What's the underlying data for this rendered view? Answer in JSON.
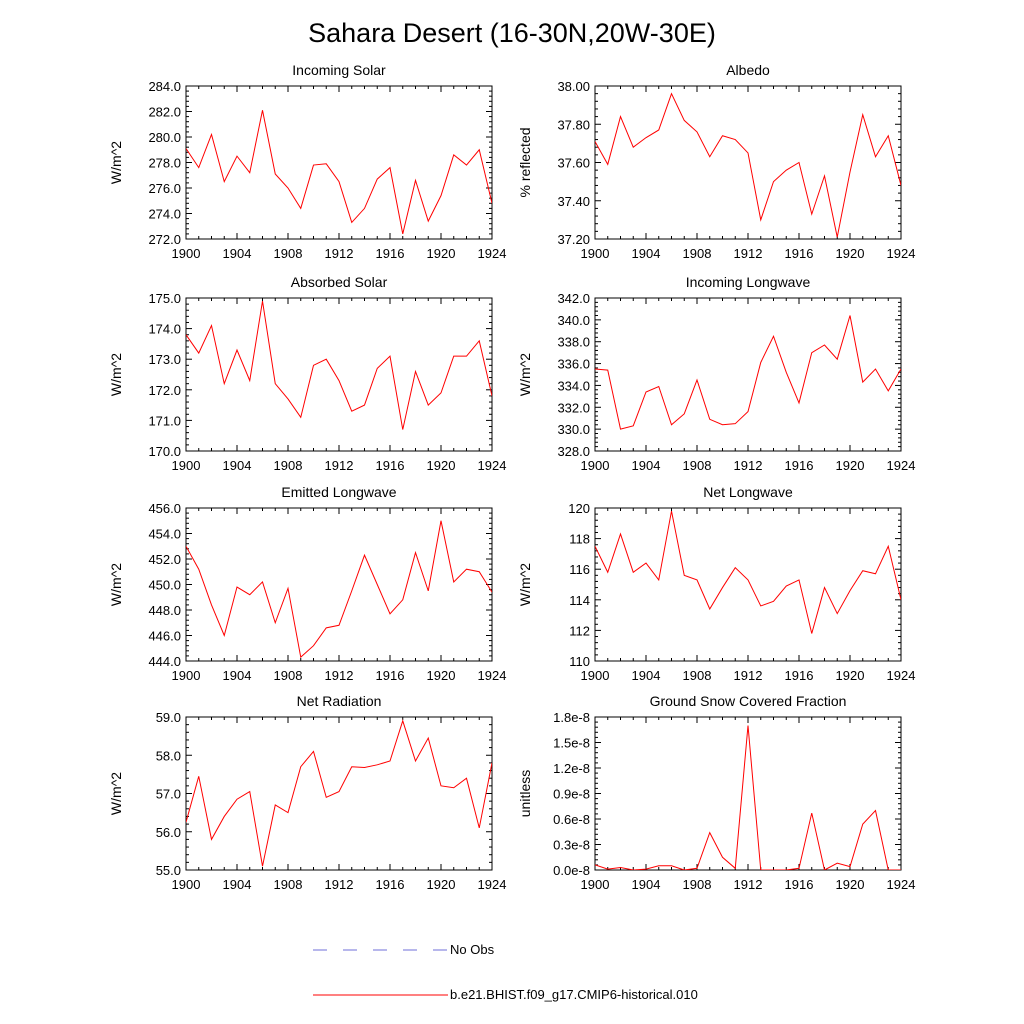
{
  "figure": {
    "title": "Sahara Desert (16-30N,20W-30E)"
  },
  "legend": {
    "obs_label": "No Obs",
    "obs_color": "#6f6fd8",
    "model_label": "b.e21.BHIST.f09_g17.CMIP6-historical.010",
    "model_color": "#ff0000"
  },
  "chart_data": [
    {
      "type": "line",
      "title": "Incoming Solar",
      "ylabel": "W/m^2",
      "xlabel": "",
      "xlim": [
        1900,
        1924
      ],
      "ylim": [
        272,
        284
      ],
      "yticks": [
        "272.0",
        "274.0",
        "276.0",
        "278.0",
        "280.0",
        "282.0",
        "284.0"
      ],
      "xticks": [
        "1900",
        "1904",
        "1908",
        "1912",
        "1916",
        "1920",
        "1924"
      ],
      "x": [
        1900,
        1901,
        1902,
        1903,
        1904,
        1905,
        1906,
        1907,
        1908,
        1909,
        1910,
        1911,
        1912,
        1913,
        1914,
        1915,
        1916,
        1917,
        1918,
        1919,
        1920,
        1921,
        1922,
        1923,
        1924
      ],
      "series": [
        {
          "values": [
            279.1,
            277.6,
            280.2,
            276.5,
            278.5,
            277.2,
            282.1,
            277.1,
            276.0,
            274.4,
            277.8,
            277.9,
            276.5,
            273.3,
            274.4,
            276.7,
            277.6,
            272.4,
            276.6,
            273.4,
            275.4,
            278.6,
            277.8,
            279.0,
            274.8
          ]
        }
      ]
    },
    {
      "type": "line",
      "title": "Albedo",
      "ylabel": "% reflected",
      "xlabel": "",
      "xlim": [
        1900,
        1924
      ],
      "ylim": [
        37.2,
        38.0
      ],
      "yticks": [
        "37.20",
        "37.40",
        "37.60",
        "37.80",
        "38.00"
      ],
      "xticks": [
        "1900",
        "1904",
        "1908",
        "1912",
        "1916",
        "1920",
        "1924"
      ],
      "x": [
        1900,
        1901,
        1902,
        1903,
        1904,
        1905,
        1906,
        1907,
        1908,
        1909,
        1910,
        1911,
        1912,
        1913,
        1914,
        1915,
        1916,
        1917,
        1918,
        1919,
        1920,
        1921,
        1922,
        1923,
        1924
      ],
      "series": [
        {
          "values": [
            37.71,
            37.59,
            37.84,
            37.68,
            37.73,
            37.77,
            37.96,
            37.82,
            37.76,
            37.63,
            37.74,
            37.72,
            37.65,
            37.3,
            37.5,
            37.56,
            37.6,
            37.33,
            37.53,
            37.21,
            37.55,
            37.85,
            37.63,
            37.74,
            37.48
          ]
        }
      ]
    },
    {
      "type": "line",
      "title": "Absorbed Solar",
      "ylabel": "W/m^2",
      "xlabel": "",
      "xlim": [
        1900,
        1924
      ],
      "ylim": [
        170,
        175
      ],
      "yticks": [
        "170.0",
        "171.0",
        "172.0",
        "173.0",
        "174.0",
        "175.0"
      ],
      "xticks": [
        "1900",
        "1904",
        "1908",
        "1912",
        "1916",
        "1920",
        "1924"
      ],
      "x": [
        1900,
        1901,
        1902,
        1903,
        1904,
        1905,
        1906,
        1907,
        1908,
        1909,
        1910,
        1911,
        1912,
        1913,
        1914,
        1915,
        1916,
        1917,
        1918,
        1919,
        1920,
        1921,
        1922,
        1923,
        1924
      ],
      "series": [
        {
          "values": [
            173.8,
            173.2,
            174.1,
            172.2,
            173.3,
            172.3,
            174.9,
            172.2,
            171.7,
            171.1,
            172.8,
            173.0,
            172.3,
            171.3,
            171.5,
            172.7,
            173.1,
            170.7,
            172.6,
            171.5,
            171.9,
            173.1,
            173.1,
            173.6,
            171.8
          ]
        }
      ]
    },
    {
      "type": "line",
      "title": "Incoming Longwave",
      "ylabel": "W/m^2",
      "xlabel": "",
      "xlim": [
        1900,
        1924
      ],
      "ylim": [
        328,
        342
      ],
      "yticks": [
        "328.0",
        "330.0",
        "332.0",
        "334.0",
        "336.0",
        "338.0",
        "340.0",
        "342.0"
      ],
      "xticks": [
        "1900",
        "1904",
        "1908",
        "1912",
        "1916",
        "1920",
        "1924"
      ],
      "x": [
        1900,
        1901,
        1902,
        1903,
        1904,
        1905,
        1906,
        1907,
        1908,
        1909,
        1910,
        1911,
        1912,
        1913,
        1914,
        1915,
        1916,
        1917,
        1918,
        1919,
        1920,
        1921,
        1922,
        1923,
        1924
      ],
      "series": [
        {
          "values": [
            335.5,
            335.4,
            330.0,
            330.3,
            333.4,
            333.9,
            330.4,
            331.4,
            334.5,
            330.9,
            330.4,
            330.5,
            331.6,
            336.1,
            338.5,
            335.2,
            332.4,
            337.0,
            337.7,
            336.4,
            340.4,
            334.3,
            335.5,
            333.5,
            335.5
          ]
        }
      ]
    },
    {
      "type": "line",
      "title": "Emitted Longwave",
      "ylabel": "W/m^2",
      "xlabel": "",
      "xlim": [
        1900,
        1924
      ],
      "ylim": [
        444,
        456
      ],
      "yticks": [
        "444.0",
        "446.0",
        "448.0",
        "450.0",
        "452.0",
        "454.0",
        "456.0"
      ],
      "xticks": [
        "1900",
        "1904",
        "1908",
        "1912",
        "1916",
        "1920",
        "1924"
      ],
      "x": [
        1900,
        1901,
        1902,
        1903,
        1904,
        1905,
        1906,
        1907,
        1908,
        1909,
        1910,
        1911,
        1912,
        1913,
        1914,
        1915,
        1916,
        1917,
        1918,
        1919,
        1920,
        1921,
        1922,
        1923,
        1924
      ],
      "series": [
        {
          "values": [
            453.0,
            451.2,
            448.4,
            446.0,
            449.8,
            449.2,
            450.2,
            447.0,
            449.7,
            444.3,
            445.2,
            446.6,
            446.8,
            449.5,
            452.3,
            450.0,
            447.7,
            448.8,
            452.5,
            449.5,
            455.0,
            450.2,
            451.2,
            451.0,
            449.4
          ]
        }
      ]
    },
    {
      "type": "line",
      "title": "Net Longwave",
      "ylabel": "W/m^2",
      "xlabel": "",
      "xlim": [
        1900,
        1924
      ],
      "ylim": [
        110,
        120
      ],
      "yticks": [
        "110",
        "112",
        "114",
        "116",
        "118",
        "120"
      ],
      "xticks": [
        "1900",
        "1904",
        "1908",
        "1912",
        "1916",
        "1920",
        "1924"
      ],
      "x": [
        1900,
        1901,
        1902,
        1903,
        1904,
        1905,
        1906,
        1907,
        1908,
        1909,
        1910,
        1911,
        1912,
        1913,
        1914,
        1915,
        1916,
        1917,
        1918,
        1919,
        1920,
        1921,
        1922,
        1923,
        1924
      ],
      "series": [
        {
          "values": [
            117.5,
            115.8,
            118.3,
            115.8,
            116.4,
            115.3,
            119.8,
            115.6,
            115.3,
            113.4,
            114.8,
            116.1,
            115.3,
            113.6,
            113.9,
            114.9,
            115.3,
            111.8,
            114.8,
            113.1,
            114.6,
            115.9,
            115.7,
            117.5,
            114.0
          ]
        }
      ]
    },
    {
      "type": "line",
      "title": "Net Radiation",
      "ylabel": "W/m^2",
      "xlabel": "",
      "xlim": [
        1900,
        1924
      ],
      "ylim": [
        55,
        59
      ],
      "yticks": [
        "55.0",
        "56.0",
        "57.0",
        "58.0",
        "59.0"
      ],
      "xticks": [
        "1900",
        "1904",
        "1908",
        "1912",
        "1916",
        "1920",
        "1924"
      ],
      "x": [
        1900,
        1901,
        1902,
        1903,
        1904,
        1905,
        1906,
        1907,
        1908,
        1909,
        1910,
        1911,
        1912,
        1913,
        1914,
        1915,
        1916,
        1917,
        1918,
        1919,
        1920,
        1921,
        1922,
        1923,
        1924
      ],
      "series": [
        {
          "values": [
            56.25,
            57.45,
            55.8,
            56.4,
            56.85,
            57.05,
            55.1,
            56.7,
            56.5,
            57.7,
            58.1,
            56.9,
            57.05,
            57.7,
            57.68,
            57.75,
            57.85,
            58.9,
            57.85,
            58.45,
            57.2,
            57.15,
            57.4,
            56.1,
            57.8
          ]
        }
      ]
    },
    {
      "type": "line",
      "title": "Ground Snow Covered Fraction",
      "ylabel": "unitless",
      "xlabel": "",
      "xlim": [
        1900,
        1924
      ],
      "ylim": [
        0,
        1.8e-08
      ],
      "yticks": [
        "0.0e-8",
        "0.3e-8",
        "0.6e-8",
        "0.9e-8",
        "1.2e-8",
        "1.5e-8",
        "1.8e-8"
      ],
      "xticks": [
        "1900",
        "1904",
        "1908",
        "1912",
        "1916",
        "1920",
        "1924"
      ],
      "x": [
        1900,
        1901,
        1902,
        1903,
        1904,
        1905,
        1906,
        1907,
        1908,
        1909,
        1910,
        1911,
        1912,
        1913,
        1914,
        1915,
        1916,
        1917,
        1918,
        1919,
        1920,
        1921,
        1922,
        1923,
        1924
      ],
      "series": [
        {
          "values": [
            6e-10,
            1e-10,
            3e-10,
            0.0,
            1e-10,
            5e-10,
            5e-10,
            0.0,
            2e-10,
            4.4e-09,
            1.5e-09,
            2e-10,
            1.7e-08,
            0.0,
            0.0,
            0.0,
            2e-10,
            6.7e-09,
            0.0,
            8e-10,
            4e-10,
            5.4e-09,
            7e-09,
            0.0,
            0.0
          ]
        }
      ]
    }
  ]
}
